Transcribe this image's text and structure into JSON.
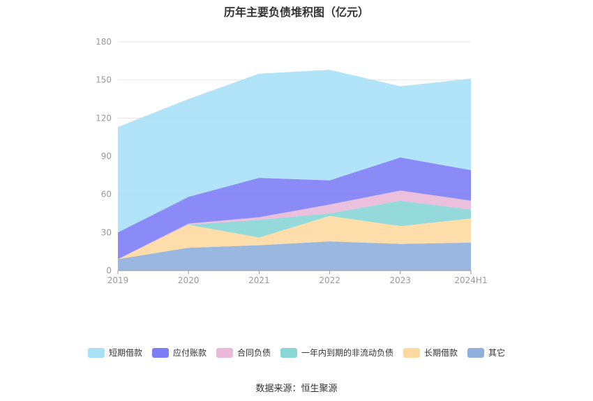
{
  "chart_data": {
    "type": "area",
    "stacked": true,
    "title": "历年主要负债堆积图（亿元）",
    "categories": [
      "2019",
      "2020",
      "2021",
      "2022",
      "2023",
      "2024H1"
    ],
    "ylim": [
      0,
      180
    ],
    "yticks": [
      0,
      30,
      60,
      90,
      120,
      150,
      180
    ],
    "grid": true,
    "legend_position": "bottom",
    "series": [
      {
        "name": "其它",
        "color": "#8fafdc",
        "values": [
          9,
          18,
          20,
          23,
          21,
          22
        ]
      },
      {
        "name": "长期借款",
        "color": "#fdd9a0",
        "values": [
          0,
          18,
          6,
          20,
          14,
          19
        ]
      },
      {
        "name": "一年内到期的非流动负债",
        "color": "#8ad6d6",
        "values": [
          0,
          0,
          14,
          2,
          20,
          7
        ]
      },
      {
        "name": "合同负债",
        "color": "#e8b9d8",
        "values": [
          0,
          1,
          2,
          7,
          8,
          7
        ]
      },
      {
        "name": "应付账款",
        "color": "#7d7ef5",
        "values": [
          21,
          21,
          31,
          19,
          26,
          24
        ]
      },
      {
        "name": "短期借款",
        "color": "#a8e0f8",
        "values": [
          83,
          77,
          82,
          87,
          56,
          72
        ]
      }
    ]
  },
  "legend_order": [
    "短期借款",
    "应付账款",
    "合同负债",
    "一年内到期的非流动负债",
    "长期借款",
    "其它"
  ],
  "source_note": "数据来源：恒生聚源"
}
